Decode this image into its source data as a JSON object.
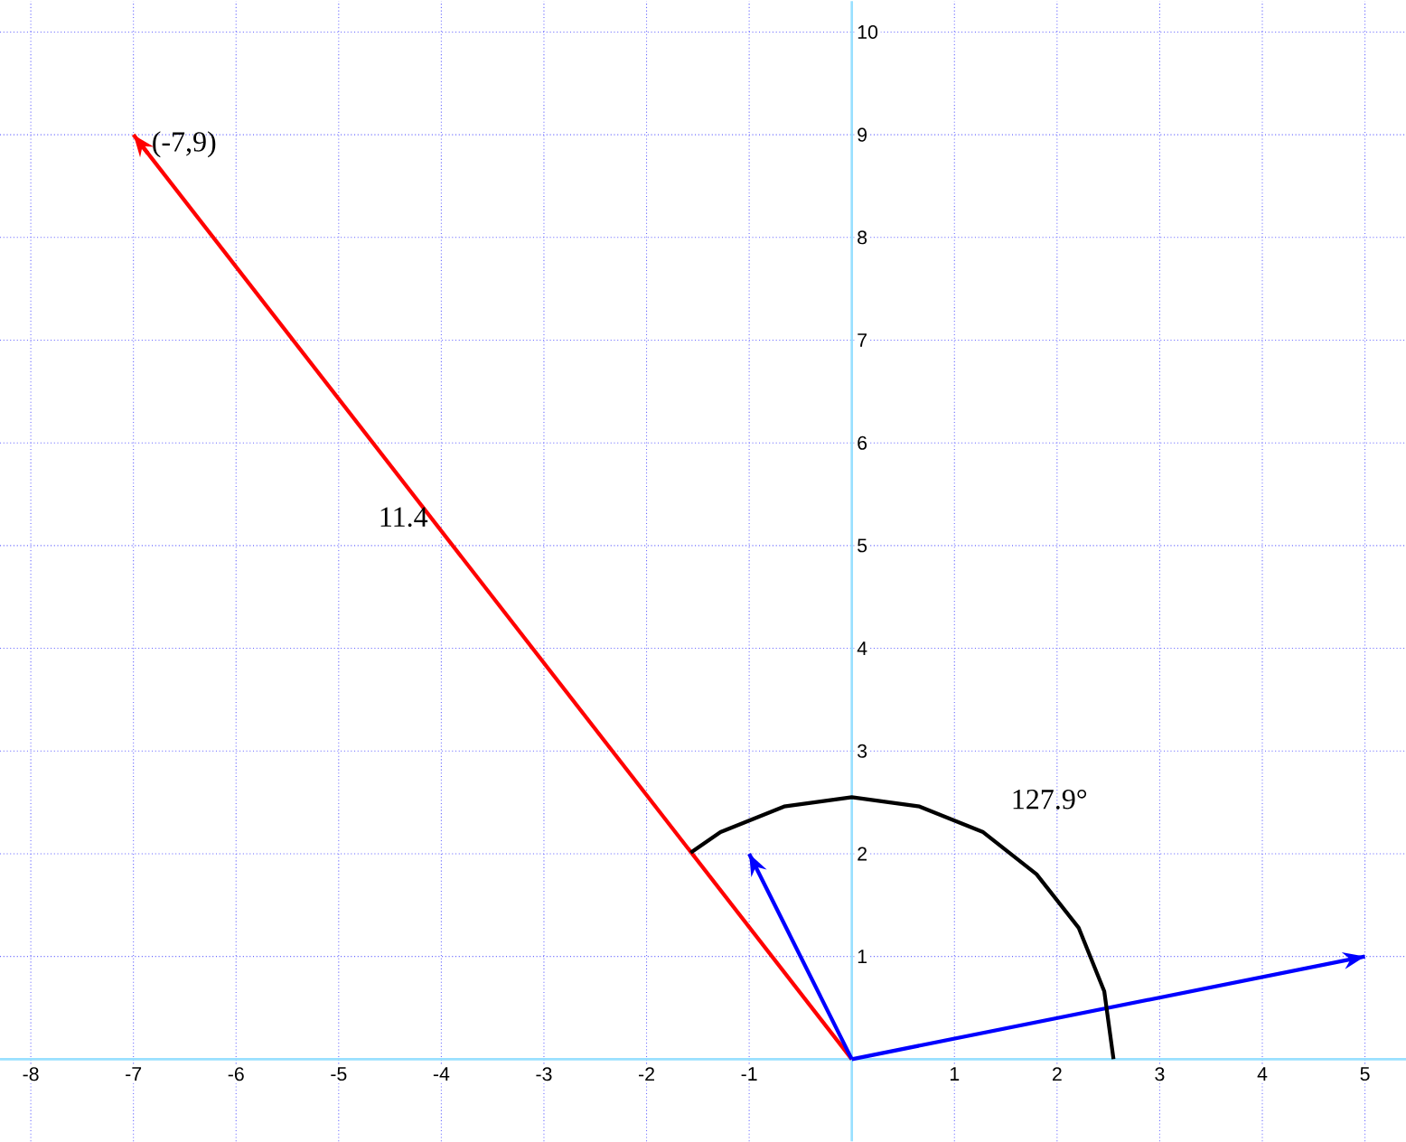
{
  "chart_data": {
    "type": "line",
    "xlim": [
      -8.3,
      5.4
    ],
    "ylim": [
      -0.8,
      10.3
    ],
    "xticks": [
      -8,
      -7,
      -6,
      -5,
      -4,
      -3,
      -2,
      -1,
      1,
      2,
      3,
      4,
      5
    ],
    "yticks": [
      1,
      2,
      3,
      4,
      5,
      6,
      7,
      8,
      9,
      10
    ],
    "grid": true,
    "marker": "none",
    "line_style": "solid",
    "series": [
      {
        "color": "#ff0000",
        "x": [
          0,
          -7
        ],
        "values": [
          0,
          9
        ]
      },
      {
        "color": "#0000ff",
        "x": [
          0,
          5
        ],
        "values": [
          0,
          1
        ]
      },
      {
        "color": "#0000ff",
        "x": [
          0,
          -1
        ],
        "values": [
          0,
          2
        ]
      },
      {
        "color": "#000000",
        "x": [
          2.55,
          2.46,
          2.21,
          1.8,
          1.28,
          0.66,
          0,
          -0.66,
          -1.28,
          -1.57
        ],
        "values": [
          0,
          0.66,
          1.28,
          1.8,
          2.21,
          2.46,
          2.55,
          2.46,
          2.21,
          2.01
        ]
      }
    ],
    "annotations": [
      {
        "text": "(-7,9)",
        "x": -7,
        "y": 9
      },
      {
        "text": "11.4",
        "x": -4,
        "y": 5.1
      },
      {
        "text": "127.9°",
        "x": 1.28,
        "y": 2.21
      }
    ]
  }
}
